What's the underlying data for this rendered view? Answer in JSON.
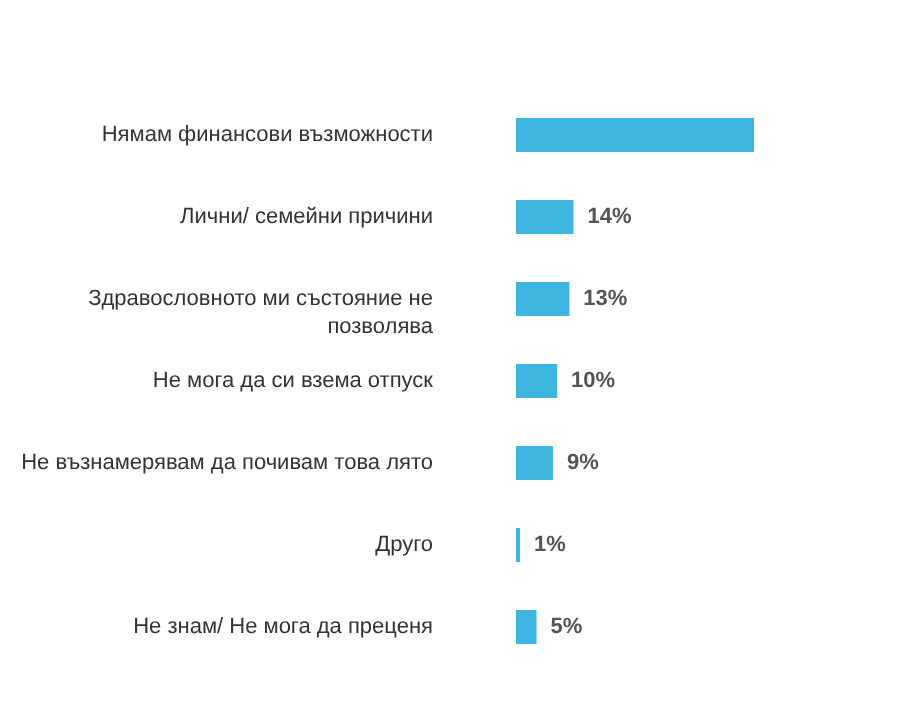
{
  "chart_data": {
    "type": "bar",
    "orientation": "horizontal",
    "categories": [
      "Нямам финансови възможности",
      "Лични/ семейни причини",
      "Здравословното ми състояние не позволява",
      "Не мога да си взема отпуск",
      "Не възнамерявам да почивам това лято",
      "Друго",
      "Не знам/ Не мога да преценя"
    ],
    "values": [
      58,
      14,
      13,
      10,
      9,
      1,
      5
    ],
    "value_labels": [
      null,
      "14%",
      "13%",
      "10%",
      "9%",
      "1%",
      "5%"
    ],
    "color": "#3fb6e0"
  }
}
